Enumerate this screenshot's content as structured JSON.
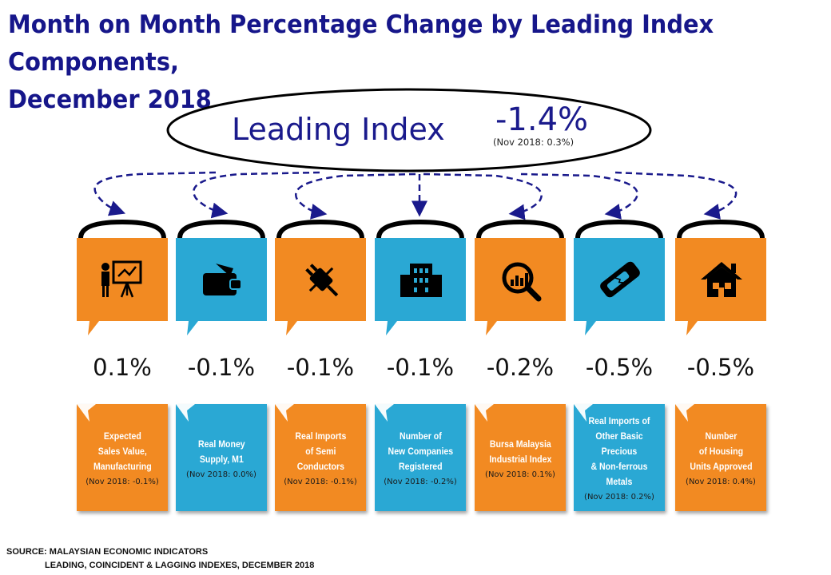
{
  "title": "Month on Month Percentage Change by Leading Index Components,\nDecember 2018",
  "leading": {
    "label": "Leading Index",
    "value": "-1.4%",
    "previous": "(Nov 2018: 0.3%)"
  },
  "colors": {
    "orange": "#f28a22",
    "blue": "#2aa8d4",
    "title": "#16168a"
  },
  "components": [
    {
      "value": "0.1%",
      "name": "Expected\nSales Value,\nManufacturing",
      "previous": "(Nov 2018: -0.1%)",
      "color": "orange",
      "icon": "presentation-icon"
    },
    {
      "value": "-0.1%",
      "name": "Real Money\nSupply, M1",
      "previous": "(Nov 2018: 0.0%)",
      "color": "blue",
      "icon": "wallet-icon"
    },
    {
      "value": "-0.1%",
      "name": "Real Imports\nof Semi\nConductors",
      "previous": "(Nov 2018: -0.1%)",
      "color": "orange",
      "icon": "plug-icon"
    },
    {
      "value": "-0.1%",
      "name": "Number of\nNew Companies\nRegistered",
      "previous": "(Nov 2018: -0.2%)",
      "color": "blue",
      "icon": "building-icon"
    },
    {
      "value": "-0.2%",
      "name": "Bursa Malaysia\nIndustrial Index",
      "previous": "(Nov 2018: 0.1%)",
      "color": "orange",
      "icon": "chart-magnifier-icon"
    },
    {
      "value": "-0.5%",
      "name": "Real Imports of\nOther Basic Precious\n& Non-ferrous\nMetals",
      "previous": "(Nov 2018: 0.2%)",
      "color": "blue",
      "icon": "metal-bar-icon"
    },
    {
      "value": "-0.5%",
      "name": "Number\nof Housing\nUnits Approved",
      "previous": "(Nov 2018: 0.4%)",
      "color": "orange",
      "icon": "house-icon"
    }
  ],
  "source": {
    "line1": "SOURCE: MALAYSIAN ECONOMIC INDICATORS",
    "line2": "LEADING, COINCIDENT & LAGGING INDEXES, DECEMBER 2018"
  }
}
